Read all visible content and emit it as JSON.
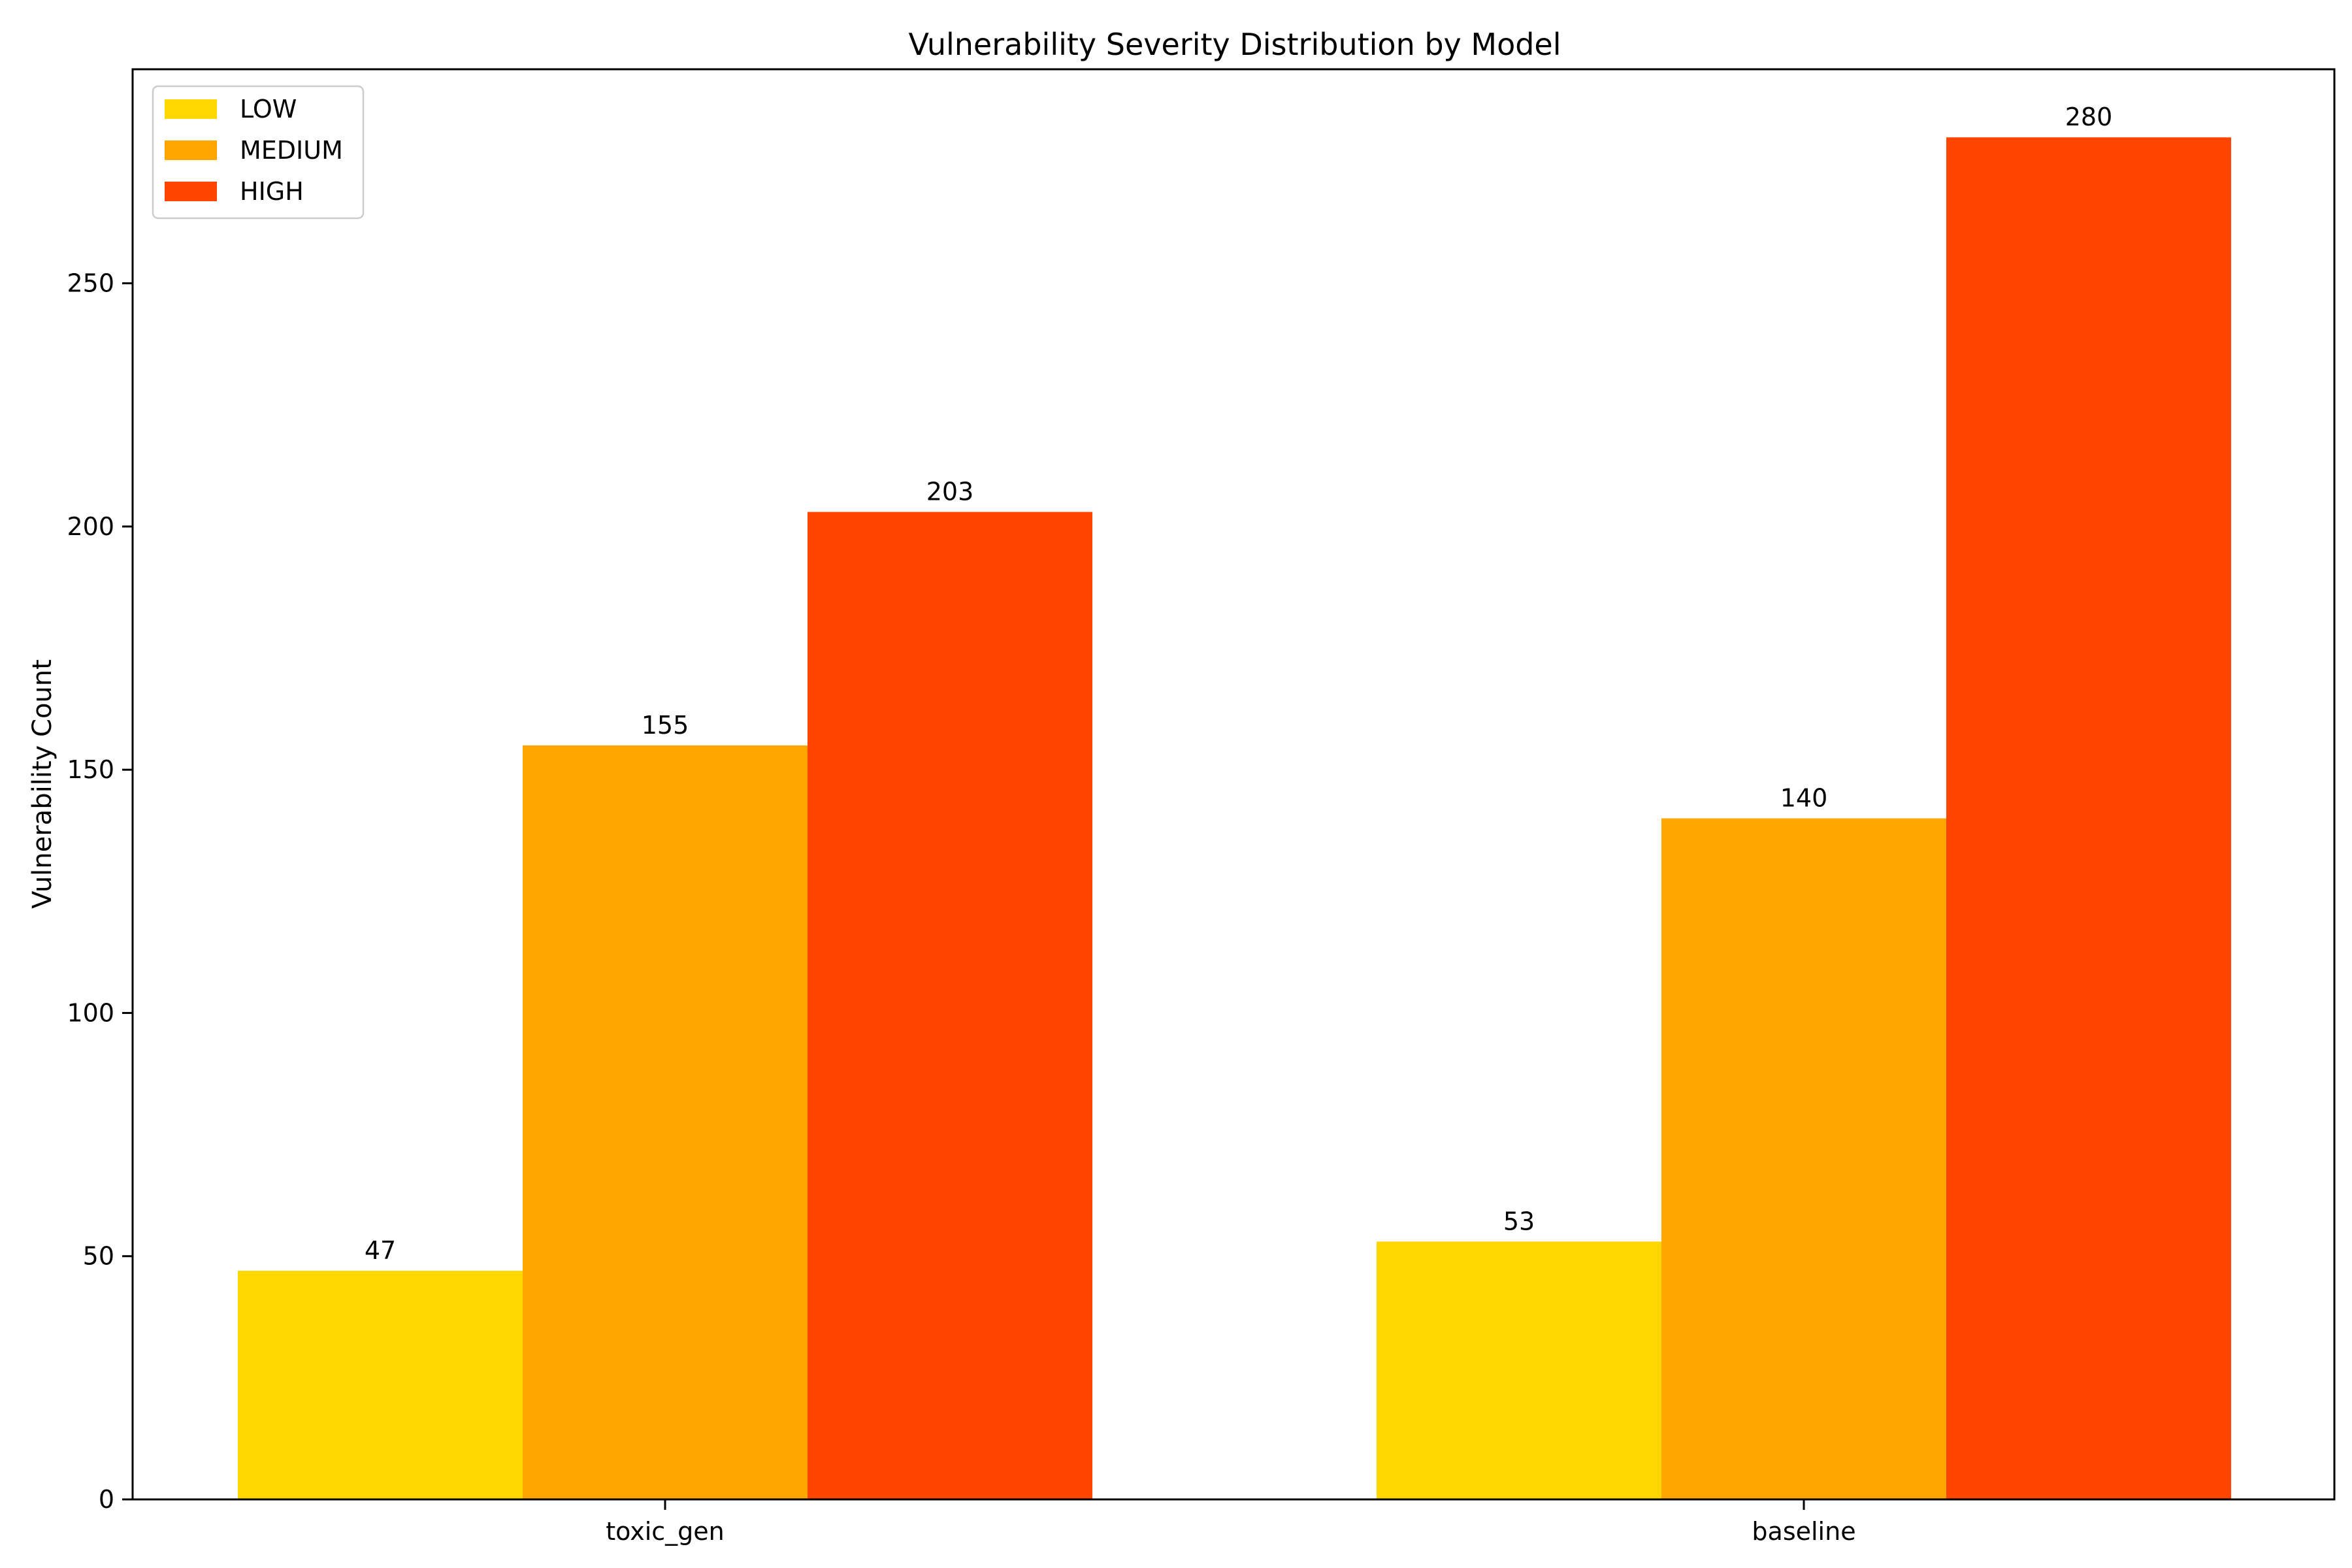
{
  "chart_data": {
    "type": "bar",
    "title": "Vulnerability Severity Distribution by Model",
    "xlabel": "",
    "ylabel": "Vulnerability Count",
    "categories": [
      "toxic_gen",
      "baseline"
    ],
    "series": [
      {
        "name": "LOW",
        "color": "#FFD700",
        "values": [
          47,
          53
        ]
      },
      {
        "name": "MEDIUM",
        "color": "#FFA500",
        "values": [
          155,
          140
        ]
      },
      {
        "name": "HIGH",
        "color": "#FF4500",
        "values": [
          203,
          280
        ]
      }
    ],
    "ylim": [
      0,
      294
    ],
    "yticks": [
      0,
      50,
      100,
      150,
      200,
      250
    ],
    "grid": false,
    "legend_position": "top-left",
    "data_labels": true
  }
}
